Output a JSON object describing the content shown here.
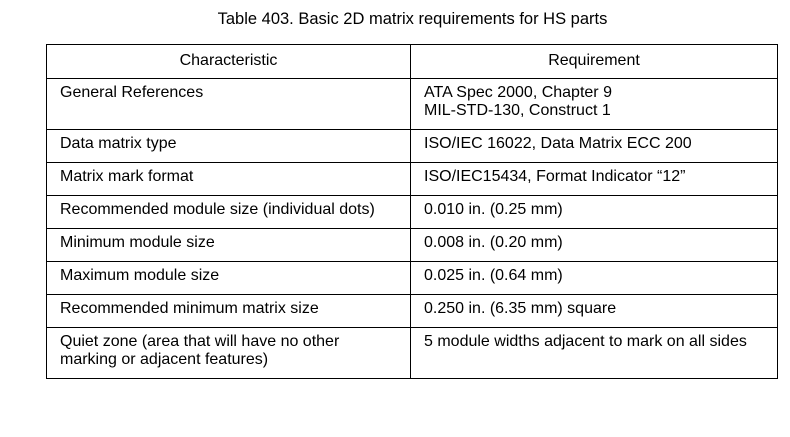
{
  "title": "Table 403.  Basic 2D matrix requirements for HS parts",
  "headers": [
    "Characteristic",
    "Requirement"
  ],
  "rows": [
    {
      "characteristic": "General References",
      "requirement": [
        "ATA Spec 2000, Chapter 9",
        "MIL-STD-130, Construct 1"
      ]
    },
    {
      "characteristic": "Data matrix type",
      "requirement": [
        "ISO/IEC 16022, Data Matrix ECC 200"
      ]
    },
    {
      "characteristic": "Matrix mark format",
      "requirement": [
        "ISO/IEC15434, Format Indicator “12”"
      ]
    },
    {
      "characteristic": "Recommended module size (individual dots)",
      "requirement": [
        "0.010 in. (0.25 mm)"
      ]
    },
    {
      "characteristic": "Minimum module size",
      "requirement": [
        "0.008 in. (0.20 mm)"
      ]
    },
    {
      "characteristic": "Maximum module size",
      "requirement": [
        "0.025 in. (0.64 mm)"
      ]
    },
    {
      "characteristic": "Recommended minimum matrix size",
      "requirement": [
        "0.250 in. (6.35 mm) square"
      ]
    },
    {
      "characteristic": "Quiet zone (area that will have no other marking or adjacent features)",
      "requirement": [
        "5 module widths adjacent to mark on all sides"
      ]
    }
  ]
}
